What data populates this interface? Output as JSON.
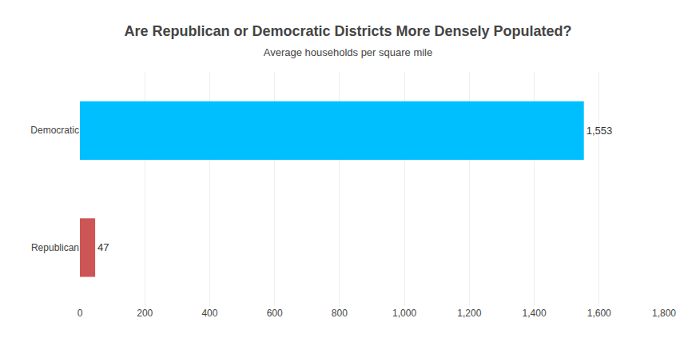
{
  "chart_data": {
    "type": "bar",
    "orientation": "horizontal",
    "title": "Are Republican or Democratic Districts More Densely Populated?",
    "subtitle": "Average households per square mile",
    "categories": [
      "Republican",
      "Democratic"
    ],
    "values": [
      47,
      1553
    ],
    "value_labels": [
      "47",
      "1,553"
    ],
    "data_labels": true,
    "colors": [
      "#CD5555",
      "#00BFFF"
    ],
    "xlim": [
      0,
      1800
    ],
    "xticks": [
      0,
      200,
      400,
      600,
      800,
      {
        "value": 1000,
        "label": "1,000"
      },
      {
        "value": 1200,
        "label": "1,200"
      },
      {
        "value": 1400,
        "label": "1,400"
      },
      {
        "value": 1600,
        "label": "1,600"
      },
      {
        "value": 1800,
        "label": "1,800"
      }
    ],
    "grid": true
  }
}
